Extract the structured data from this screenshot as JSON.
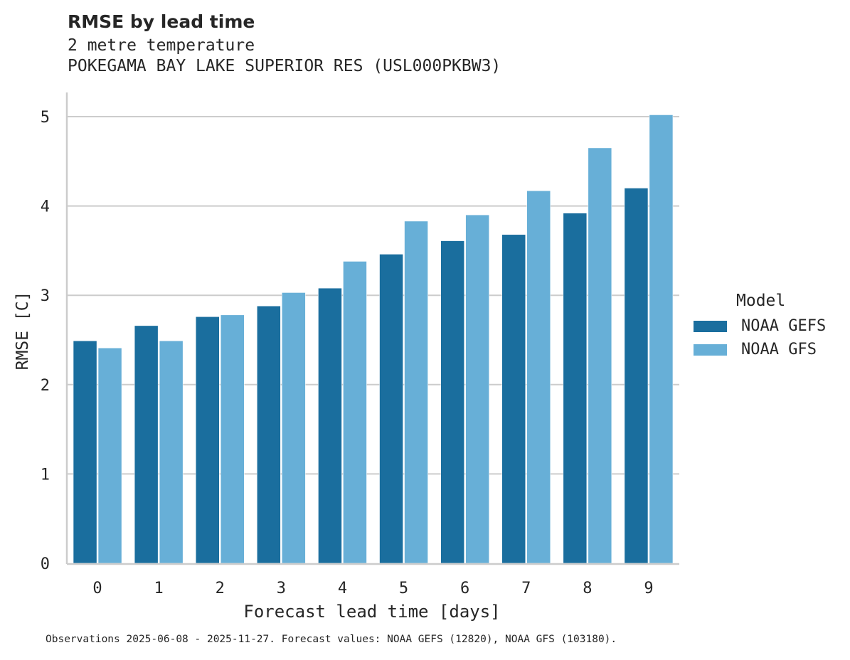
{
  "header": {
    "title": "RMSE by lead time",
    "subtitle_1": "2 metre temperature",
    "subtitle_2": "POKEGAMA BAY LAKE SUPERIOR RES (USL000PKBW3)"
  },
  "axes": {
    "xlabel": "Forecast lead time [days]",
    "ylabel": "RMSE [C]",
    "yticks": [
      "0",
      "1",
      "2",
      "3",
      "4",
      "5"
    ],
    "xticks": [
      "0",
      "1",
      "2",
      "3",
      "4",
      "5",
      "6",
      "7",
      "8",
      "9"
    ]
  },
  "legend": {
    "title": "Model",
    "items": [
      {
        "label": "NOAA GEFS",
        "color": "#1a6e9e"
      },
      {
        "label": "NOAA GFS",
        "color": "#67afd7"
      }
    ]
  },
  "footer": "Observations 2025-06-08 - 2025-11-27. Forecast values: NOAA GEFS (12820), NOAA GFS (103180).",
  "chart_data": {
    "type": "bar",
    "title": "RMSE by lead time",
    "subtitle": "2 metre temperature — POKEGAMA BAY LAKE SUPERIOR RES (USL000PKBW3)",
    "xlabel": "Forecast lead time [days]",
    "ylabel": "RMSE [C]",
    "categories": [
      "0",
      "1",
      "2",
      "3",
      "4",
      "5",
      "6",
      "7",
      "8",
      "9"
    ],
    "series": [
      {
        "name": "NOAA GEFS",
        "color": "#1a6e9e",
        "values": [
          2.49,
          2.66,
          2.76,
          2.88,
          3.08,
          3.46,
          3.61,
          3.68,
          3.92,
          4.2
        ]
      },
      {
        "name": "NOAA GFS",
        "color": "#67afd7",
        "values": [
          2.41,
          2.49,
          2.78,
          3.03,
          3.38,
          3.83,
          3.9,
          4.17,
          4.65,
          5.02
        ]
      }
    ],
    "ylim": [
      0,
      5.2
    ],
    "grid": "horizontal",
    "legend_position": "right",
    "legend_title": "Model"
  }
}
